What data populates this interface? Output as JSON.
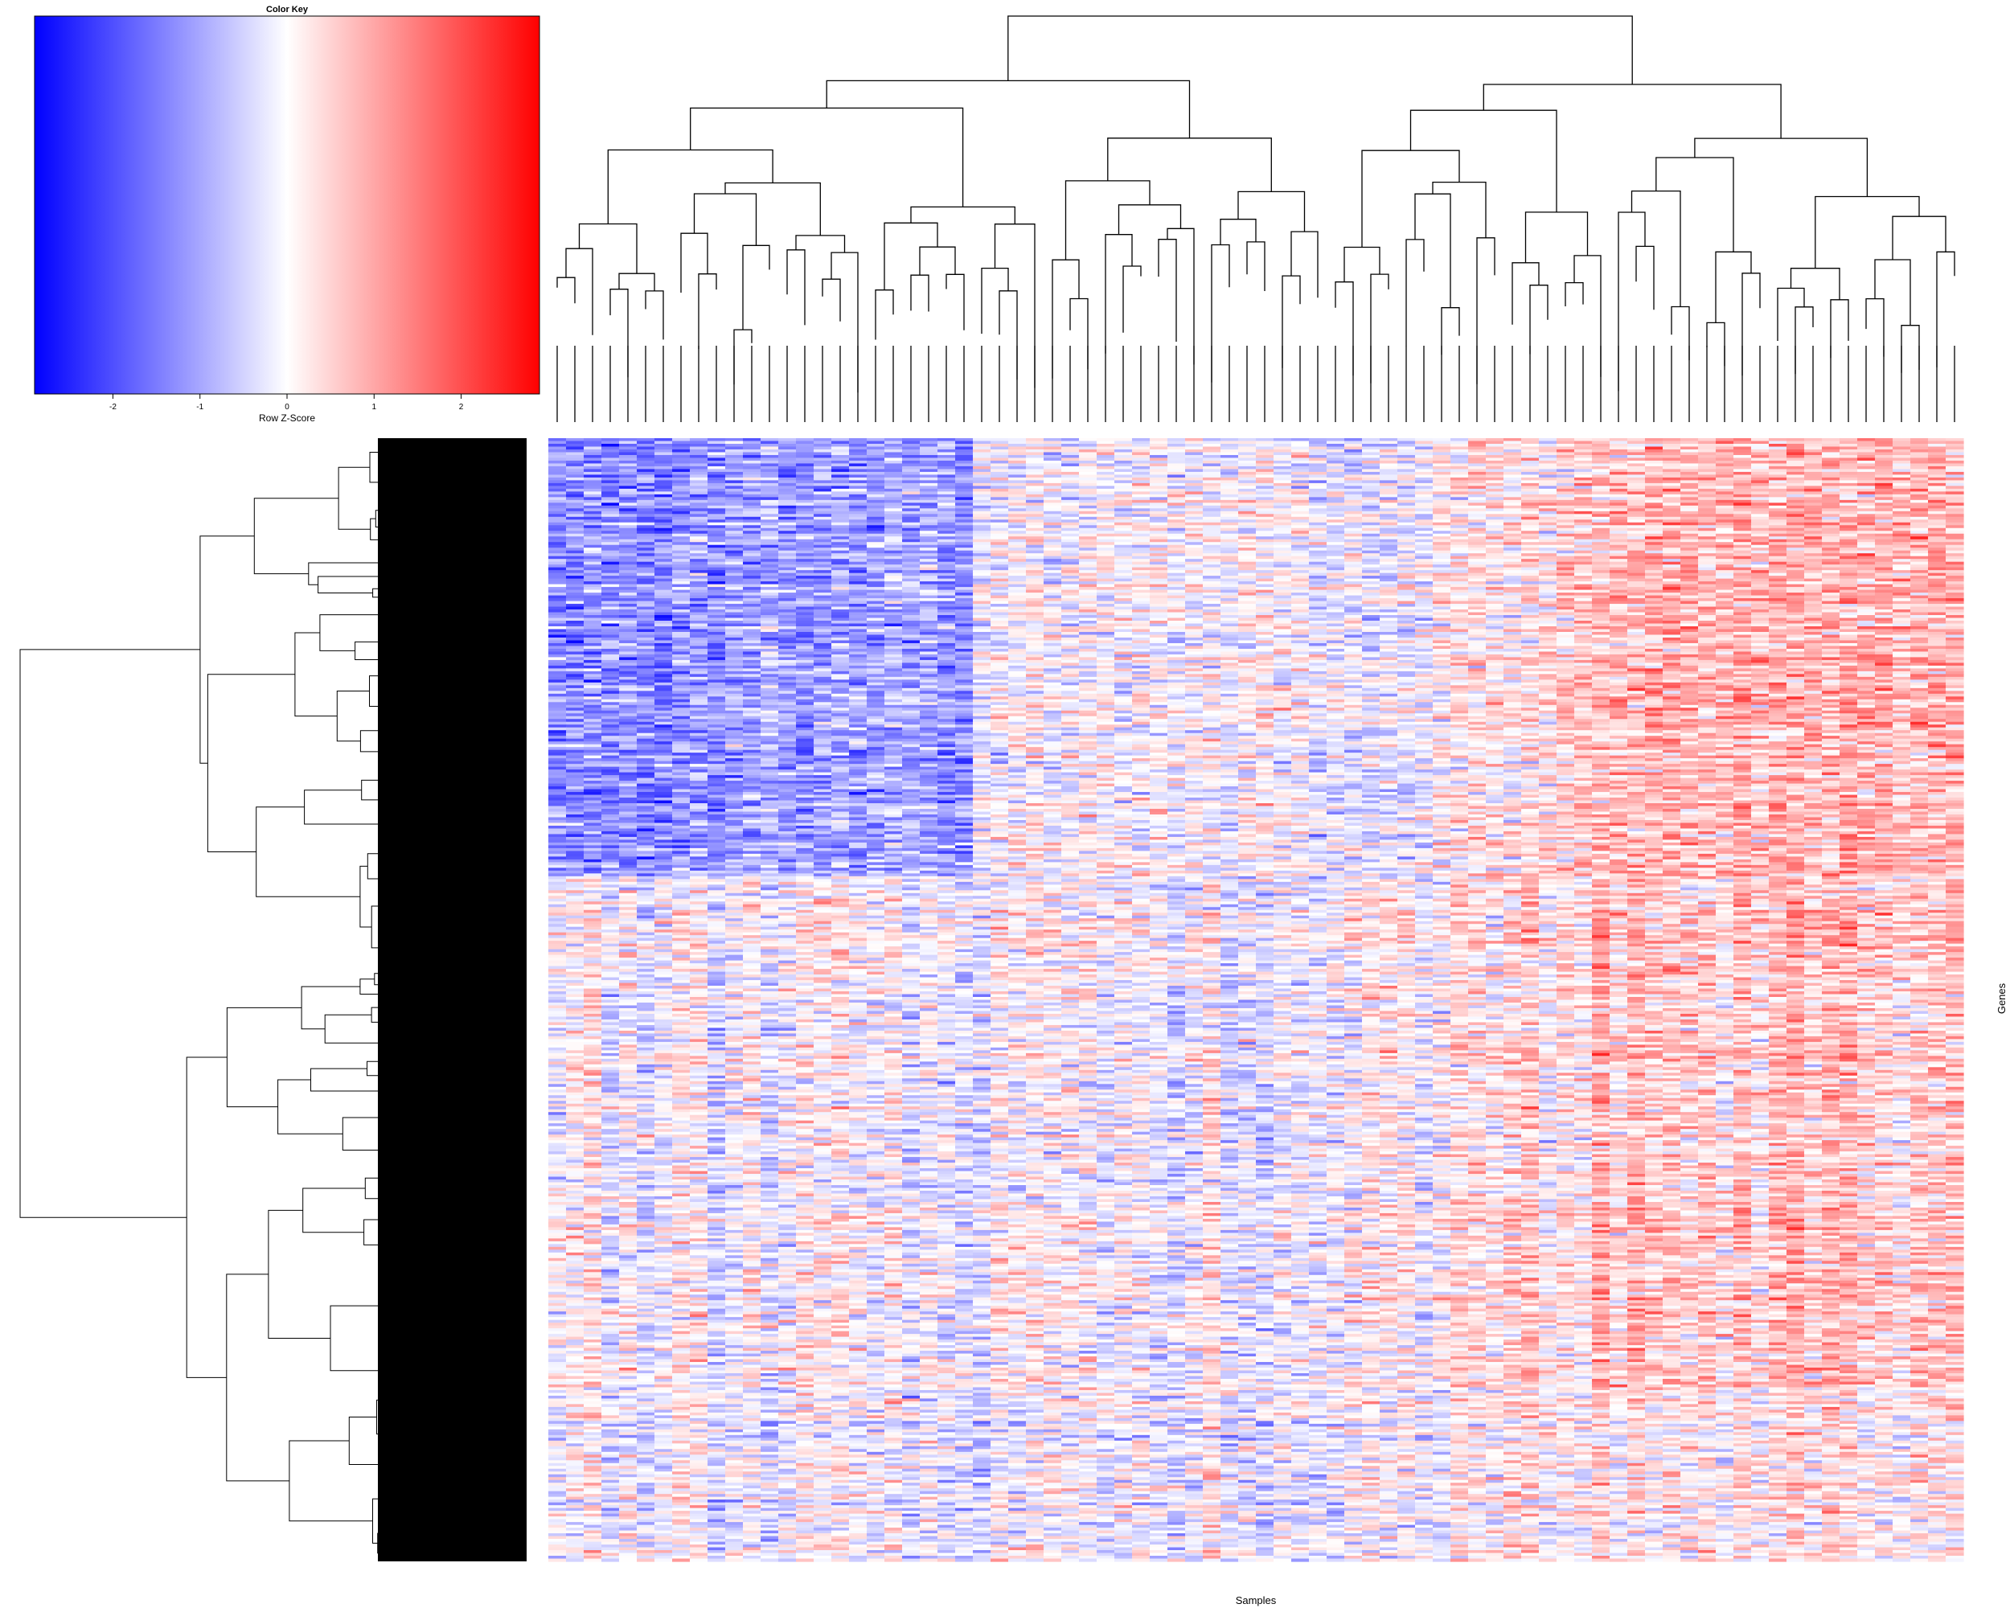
{
  "chart_data": {
    "type": "heatmap",
    "color_key": {
      "title": "Color Key",
      "label": "Row Z-Score",
      "range": [
        -2.9,
        2.9
      ],
      "ticks": [
        -2,
        -1,
        0,
        1,
        2
      ],
      "colors": {
        "low": "#0000ff",
        "mid": "#ffffff",
        "high": "#ff0000"
      }
    },
    "xlabel": "Samples",
    "ylabel": "Genes",
    "n_columns": 80,
    "n_rows": 400,
    "column_dendrogram": true,
    "row_dendrogram": true,
    "column_mean_zscore": [
      -1.4,
      -1.5,
      -1.3,
      -1.5,
      -1.4,
      -1.5,
      -1.6,
      -1.3,
      -1.2,
      -1.4,
      -1.1,
      -1.2,
      -1.0,
      -1.3,
      -1.4,
      -1.2,
      -1.1,
      -1.3,
      -1.2,
      -1.0,
      -1.2,
      -1.1,
      -1.3,
      -1.4,
      -0.2,
      -0.1,
      0.0,
      0.1,
      -0.2,
      -0.1,
      0.1,
      0.0,
      -0.1,
      0.0,
      0.1,
      -0.1,
      0.1,
      0.0,
      -0.2,
      0.1,
      0.2,
      0.1,
      0.0,
      -0.3,
      -0.2,
      -0.3,
      -0.4,
      -0.2,
      -0.3,
      -0.1,
      0.2,
      0.3,
      0.4,
      0.3,
      0.2,
      0.4,
      0.3,
      0.5,
      0.6,
      0.8,
      0.9,
      0.8,
      0.9,
      1.0,
      0.9,
      0.8,
      0.9,
      1.0,
      0.8,
      0.9,
      1.0,
      0.9,
      0.8,
      1.0,
      0.9,
      1.0,
      0.8,
      0.9,
      1.0,
      0.9
    ],
    "row_blocks": [
      {
        "name": "upper",
        "row_fraction": 0.39,
        "pattern": "follows column means"
      },
      {
        "name": "middle",
        "row_fraction": 0.455,
        "pattern": "inverted in left samples, mixed"
      },
      {
        "name": "lower",
        "row_fraction": 0.155,
        "pattern": "mixed"
      }
    ]
  }
}
